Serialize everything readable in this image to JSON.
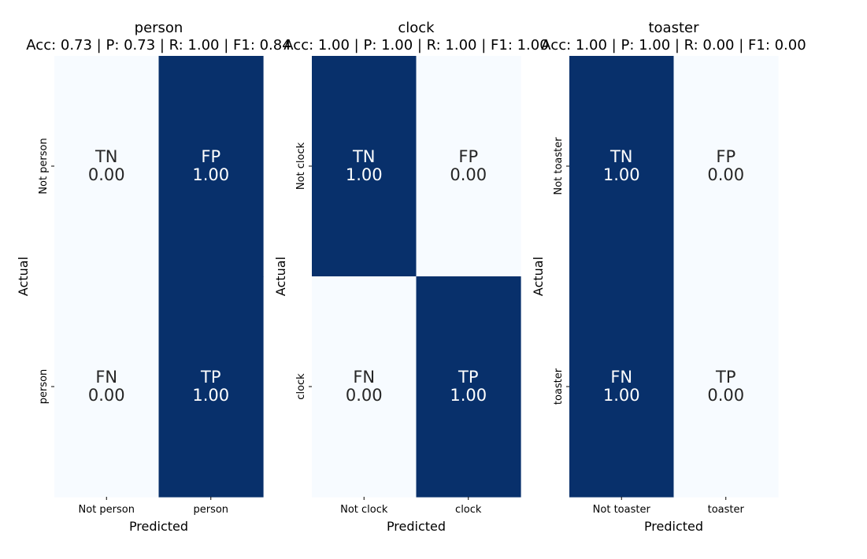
{
  "figure": {
    "colors": {
      "high": "#08306b",
      "low": "#f7fbff",
      "text_on_dark": "#ffffff",
      "text_on_light": "#262626",
      "axis_text": "#000000"
    }
  },
  "chart_data": [
    {
      "type": "heatmap",
      "title": "person",
      "subtitle": "Acc: 0.73 | P: 0.73 | R: 1.00 | F1: 0.84",
      "xlabel": "Predicted",
      "ylabel": "Actual",
      "x_tick_labels": [
        "Not person",
        "person"
      ],
      "y_tick_labels": [
        "Not person",
        "person"
      ],
      "cell_labels": [
        [
          "TN",
          "FP"
        ],
        [
          "FN",
          "TP"
        ]
      ],
      "values": [
        [
          0.0,
          1.0
        ],
        [
          0.0,
          1.0
        ]
      ],
      "value_range": [
        0,
        1
      ],
      "colormap": "Blues"
    },
    {
      "type": "heatmap",
      "title": "clock",
      "subtitle": "Acc: 1.00 | P: 1.00 | R: 1.00 | F1: 1.00",
      "xlabel": "Predicted",
      "ylabel": "Actual",
      "x_tick_labels": [
        "Not clock",
        "clock"
      ],
      "y_tick_labels": [
        "Not clock",
        "clock"
      ],
      "cell_labels": [
        [
          "TN",
          "FP"
        ],
        [
          "FN",
          "TP"
        ]
      ],
      "values": [
        [
          1.0,
          0.0
        ],
        [
          0.0,
          1.0
        ]
      ],
      "value_range": [
        0,
        1
      ],
      "colormap": "Blues"
    },
    {
      "type": "heatmap",
      "title": "toaster",
      "subtitle": "Acc: 1.00 | P: 1.00 | R: 0.00 | F1: 0.00",
      "xlabel": "Predicted",
      "ylabel": "Actual",
      "x_tick_labels": [
        "Not toaster",
        "toaster"
      ],
      "y_tick_labels": [
        "Not toaster",
        "toaster"
      ],
      "cell_labels": [
        [
          "TN",
          "FP"
        ],
        [
          "FN",
          "TP"
        ]
      ],
      "values": [
        [
          1.0,
          0.0
        ],
        [
          1.0,
          0.0
        ]
      ],
      "value_range": [
        0,
        1
      ],
      "colormap": "Blues"
    }
  ]
}
